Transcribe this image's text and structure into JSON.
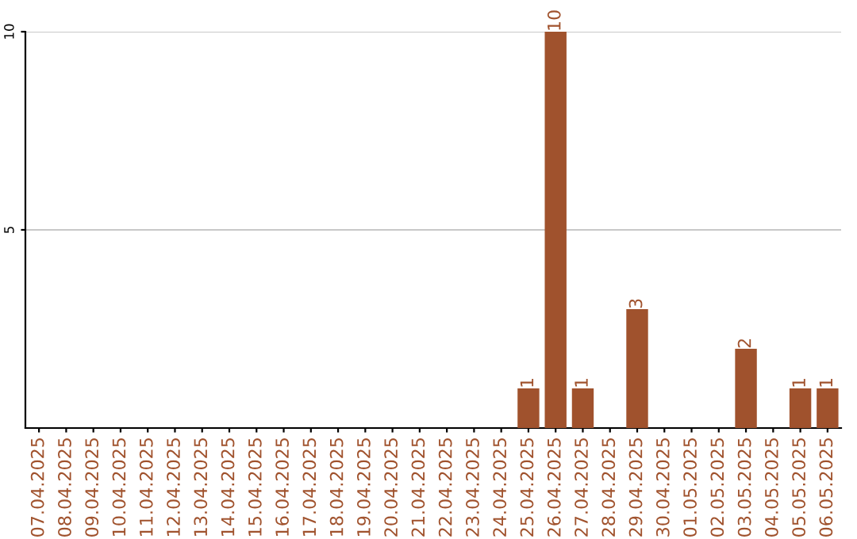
{
  "chart_data": {
    "type": "bar",
    "categories": [
      "07.04.2025",
      "08.04.2025",
      "09.04.2025",
      "10.04.2025",
      "11.04.2025",
      "12.04.2025",
      "13.04.2025",
      "14.04.2025",
      "15.04.2025",
      "16.04.2025",
      "17.04.2025",
      "18.04.2025",
      "19.04.2025",
      "20.04.2025",
      "21.04.2025",
      "22.04.2025",
      "23.04.2025",
      "24.04.2025",
      "25.04.2025",
      "26.04.2025",
      "27.04.2025",
      "28.04.2025",
      "29.04.2025",
      "30.04.2025",
      "01.05.2025",
      "02.05.2025",
      "03.05.2025",
      "04.05.2025",
      "05.05.2025",
      "06.05.2025"
    ],
    "values": [
      0,
      0,
      0,
      0,
      0,
      0,
      0,
      0,
      0,
      0,
      0,
      0,
      0,
      0,
      0,
      0,
      0,
      0,
      1,
      10,
      1,
      0,
      3,
      0,
      0,
      0,
      2,
      0,
      1,
      1
    ],
    "value_labels": [
      null,
      null,
      null,
      null,
      null,
      null,
      null,
      null,
      null,
      null,
      null,
      null,
      null,
      null,
      null,
      null,
      null,
      null,
      "1",
      "10",
      "1",
      null,
      "3",
      null,
      null,
      null,
      "2",
      null,
      "1",
      "1"
    ],
    "color": "#a0522d",
    "ylim": [
      0,
      10
    ],
    "yticks": [
      5,
      10
    ],
    "grid": "y"
  }
}
